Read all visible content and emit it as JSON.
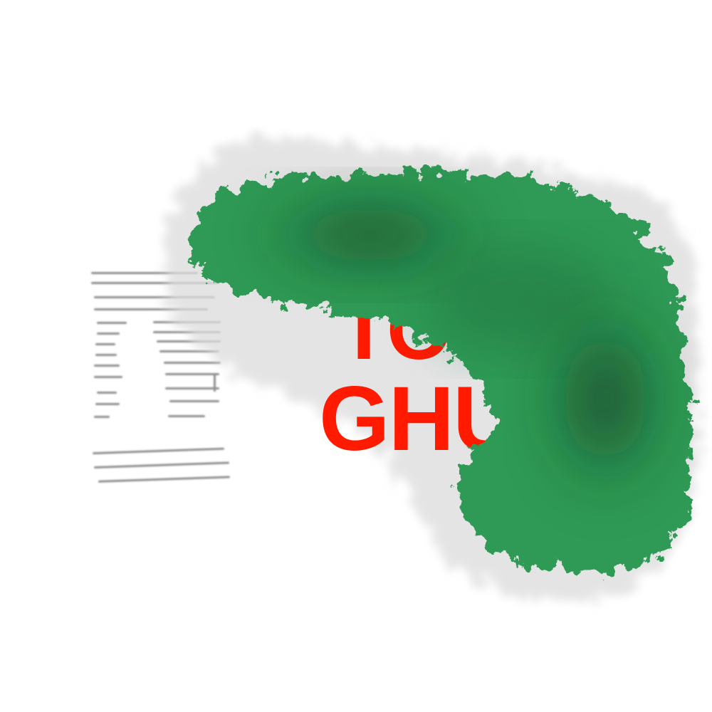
{
  "scene": {
    "background_color": "#ffffff",
    "description_free_note": ""
  },
  "headline": {
    "line_1": "TO",
    "line_2": "GHU",
    "color": "#ff1a00"
  },
  "paint": {
    "green": "#2f9a55",
    "dark_green": "#164d2b",
    "haze": "#d9d9d9"
  },
  "document": {
    "text_color": "#555555"
  }
}
